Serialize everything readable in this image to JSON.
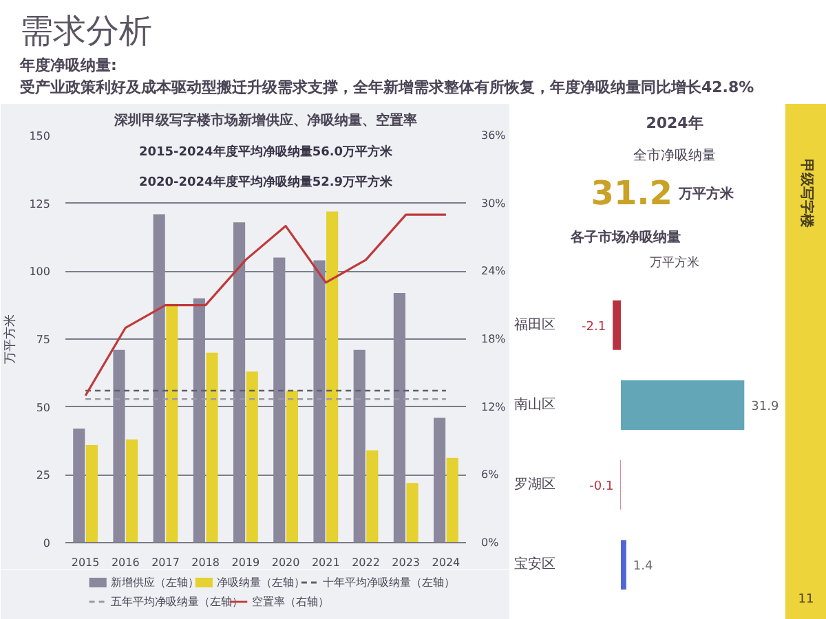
{
  "chart_data": [
    {
      "type": "other",
      "title": "需求分析",
      "subtitle": "年度净吸纳量:",
      "annotations": [
        "受产业政策利好及成本驱动型搬迁升级需求支撑，全年新增需求整体有所恢复，年度净吸纳量同比增长42.8%",
        "甲级写字楼",
        "11"
      ]
    },
    {
      "type": "bar",
      "title": "深圳甲级写字楼市场新增供应、净吸纳量、空置率",
      "ylabel": "万平方米",
      "categories": [
        "2015",
        "2016",
        "2017",
        "2018",
        "2019",
        "2020",
        "2021",
        "2022",
        "2023",
        "2024"
      ],
      "series": [
        {
          "name": "新增供应（左轴）",
          "type": "bar",
          "color": "#8b879c",
          "values": [
            42,
            71,
            121,
            90,
            118,
            105,
            104,
            71,
            92,
            46
          ]
        },
        {
          "name": "净吸纳量（左轴）",
          "type": "bar",
          "color": "#e5d12f",
          "values": [
            36,
            38,
            88,
            70,
            63,
            56,
            122,
            34,
            22,
            31.2
          ]
        },
        {
          "name": "十年平均净吸纳量（左轴）",
          "type": "line",
          "color": "#5f5f6a",
          "line_style": "dashed",
          "values": [
            56.0,
            56.0,
            56.0,
            56.0,
            56.0,
            56.0,
            56.0,
            56.0,
            56.0,
            56.0
          ]
        },
        {
          "name": "五年平均净吸纳量（左轴）",
          "type": "line",
          "color": "#9a9aa6",
          "line_style": "dashed",
          "values": [
            52.9,
            52.9,
            52.9,
            52.9,
            52.9,
            52.9,
            52.9,
            52.9,
            52.9,
            52.9
          ]
        },
        {
          "name": "空置率（右轴）",
          "type": "line",
          "color": "#c0393b",
          "axis": "y2",
          "values": [
            13,
            19,
            21,
            21,
            25,
            28,
            23,
            25,
            29,
            29
          ]
        }
      ],
      "ylim": [
        0,
        150
      ],
      "yticks": [
        0,
        25,
        50,
        75,
        100,
        125,
        150
      ],
      "y2lim": [
        0,
        36
      ],
      "y2ticks": [
        {
          "value": 0,
          "label": "0%"
        },
        {
          "value": 6,
          "label": "6%"
        },
        {
          "value": 12,
          "label": "12%"
        },
        {
          "value": 18,
          "label": "18%"
        },
        {
          "value": 24,
          "label": "24%"
        },
        {
          "value": 30,
          "label": "30%"
        },
        {
          "value": 36,
          "label": "36%"
        }
      ],
      "grid": "y",
      "legend": "bottom",
      "marker": "none",
      "annotations": [
        "2015-2024年度平均净吸纳量56.0万平方米",
        "2020-2024年度平均净吸纳量52.9万平方米"
      ]
    },
    {
      "type": "other",
      "title": "2024年",
      "annotations": [
        "全市净吸纳量",
        "31.2",
        "万平方米"
      ]
    },
    {
      "type": "bar",
      "orientation": "horizontal",
      "title": "各子市场净吸纳量",
      "xlabel": "万平方米",
      "categories": [
        "福田区",
        "南山区",
        "罗湖区",
        "宝安区"
      ],
      "values": [
        -2.1,
        31.9,
        -0.1,
        1.4
      ],
      "colors": [
        "#b8323f",
        "#62a6b8",
        "#b8323f",
        "#5166d6"
      ],
      "data_labels": true,
      "tick_labels": "y"
    }
  ]
}
